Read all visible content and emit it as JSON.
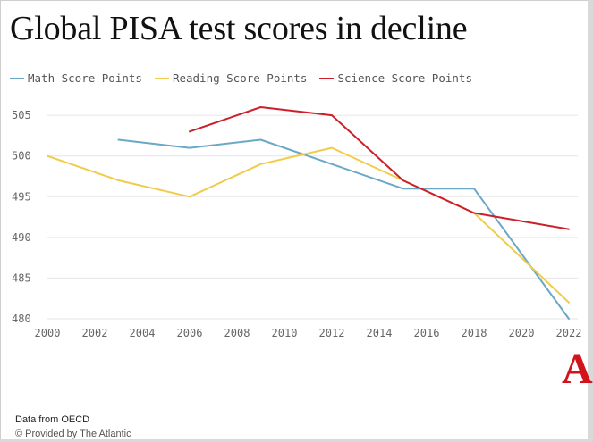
{
  "chart_data": {
    "type": "line",
    "title": "Global PISA test scores in decline",
    "xlabel": "",
    "ylabel": "",
    "xlim": [
      2000,
      2022
    ],
    "ylim": [
      480,
      506
    ],
    "x_ticks": [
      2000,
      2002,
      2004,
      2006,
      2008,
      2010,
      2012,
      2014,
      2016,
      2018,
      2020,
      2022
    ],
    "y_ticks": [
      480,
      485,
      490,
      495,
      500,
      505
    ],
    "grid": "horizontal",
    "legend_position": "top-left",
    "series": [
      {
        "name": "Math Score Points",
        "color": "#6aa8c6",
        "x": [
          2003,
          2006,
          2009,
          2012,
          2015,
          2018,
          2022
        ],
        "values": [
          502,
          501,
          502,
          499,
          496,
          496,
          480
        ]
      },
      {
        "name": "Reading Score Points",
        "color": "#f0cc4a",
        "x": [
          2000,
          2003,
          2006,
          2009,
          2012,
          2015,
          2018,
          2022
        ],
        "values": [
          500,
          497,
          495,
          499,
          501,
          497,
          493,
          482
        ]
      },
      {
        "name": "Science Score Points",
        "color": "#cc1f2a",
        "x": [
          2006,
          2009,
          2012,
          2015,
          2018,
          2022
        ],
        "values": [
          503,
          506,
          505,
          497,
          493,
          491
        ]
      }
    ]
  },
  "logo_text": "A",
  "source_text": "Data from OECD",
  "credit_text": "© Provided by The Atlantic"
}
